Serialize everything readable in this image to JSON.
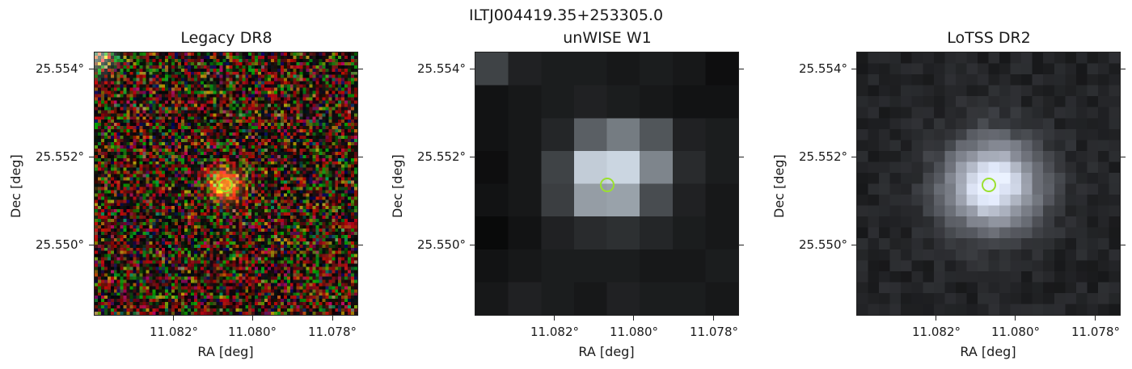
{
  "suptitle": "ILTJ004419.35+253305.0",
  "panels": [
    {
      "title": "Legacy DR8",
      "xlabel": "RA [deg]",
      "ylabel": "Dec [deg]",
      "yticks": [
        "25.554°",
        "25.552°",
        "25.550°"
      ],
      "xticks": [
        "11.082°",
        "11.080°",
        "11.078°"
      ],
      "image_kind": "rgb-noise-with-source"
    },
    {
      "title": "unWISE W1",
      "xlabel": "RA [deg]",
      "ylabel": "Dec [deg]",
      "yticks": [
        "25.554°",
        "25.552°",
        "25.550°"
      ],
      "xticks": [
        "11.082°",
        "11.080°",
        "11.078°"
      ],
      "image_kind": "coarse-grey-pixels"
    },
    {
      "title": "LoTSS DR2",
      "xlabel": "RA [deg]",
      "ylabel": "Dec [deg]",
      "yticks": [
        "25.554°",
        "25.552°",
        "25.550°"
      ],
      "xticks": [
        "11.082°",
        "11.080°",
        "11.078°"
      ],
      "image_kind": "smooth-grey-source"
    }
  ],
  "marker_color": "#9be02f"
}
